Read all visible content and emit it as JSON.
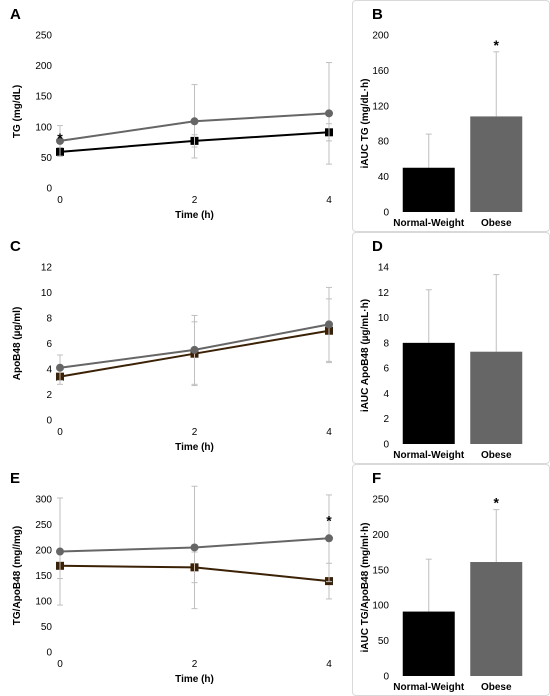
{
  "panels": {
    "A": {
      "letter": "A"
    },
    "B": {
      "letter": "B"
    },
    "C": {
      "letter": "C"
    },
    "D": {
      "letter": "D"
    },
    "E": {
      "letter": "E"
    },
    "F": {
      "letter": "F"
    }
  },
  "colors": {
    "normal_weight": "#000000",
    "obese": "#666666",
    "line_normal_C_E": "#3b2106",
    "error": "#bfbfbf"
  },
  "chart_data": [
    {
      "id": "A",
      "type": "line",
      "grid": false,
      "xlabel": "Time (h)",
      "ylabel": "TG (mg/dL)",
      "x": [
        0,
        2,
        4
      ],
      "ylim": [
        0,
        250
      ],
      "yticks": [
        0,
        50,
        100,
        150,
        200,
        250
      ],
      "series": [
        {
          "key": "normal",
          "values": [
            59,
            77,
            91
          ],
          "err": [
            7,
            10,
            14
          ],
          "marker": "square"
        },
        {
          "key": "obese",
          "values": [
            77,
            109,
            122
          ],
          "err": [
            25,
            60,
            83
          ],
          "marker": "circle"
        }
      ],
      "annotations": [
        {
          "text": "*",
          "x": 0,
          "y": 82
        }
      ]
    },
    {
      "id": "B",
      "type": "bar",
      "grid": false,
      "categories": [
        "Normal-Weight",
        "Obese"
      ],
      "ylabel": "iAUC TG (mg/dL·h)",
      "values": [
        50,
        108
      ],
      "err": [
        38,
        73
      ],
      "ylim": [
        0,
        200
      ],
      "yticks": [
        0,
        40,
        80,
        120,
        160,
        200
      ],
      "annotations": [
        {
          "text": "*",
          "category": "Obese"
        }
      ]
    },
    {
      "id": "C",
      "type": "line",
      "grid": false,
      "xlabel": "Time (h)",
      "ylabel": "ApoB48 (µg/ml)",
      "x": [
        0,
        2,
        4
      ],
      "ylim": [
        0,
        12
      ],
      "yticks": [
        0,
        2,
        4,
        6,
        8,
        10,
        12
      ],
      "series": [
        {
          "key": "normal",
          "values": [
            3.4,
            5.2,
            7.0
          ],
          "err": [
            0.6,
            2.5,
            2.5
          ],
          "marker": "square"
        },
        {
          "key": "obese",
          "values": [
            4.1,
            5.5,
            7.5
          ],
          "err": [
            1.0,
            2.7,
            2.9
          ],
          "marker": "circle"
        }
      ]
    },
    {
      "id": "D",
      "type": "bar",
      "grid": false,
      "categories": [
        "Normal-Weight",
        "Obese"
      ],
      "ylabel": "iAUC ApoB48 (µg/mL·h)",
      "values": [
        8.0,
        7.3
      ],
      "err": [
        4.2,
        6.1
      ],
      "ylim": [
        0,
        14
      ],
      "yticks": [
        0,
        2,
        4,
        6,
        8,
        10,
        12,
        14
      ]
    },
    {
      "id": "E",
      "type": "line",
      "grid": false,
      "xlabel": "Time (h)",
      "ylabel": "TG/ApoB48 (mg//mg)",
      "x": [
        0,
        2,
        4
      ],
      "ylim": [
        0,
        300
      ],
      "yticks": [
        0,
        50,
        100,
        150,
        200,
        250,
        300
      ],
      "series": [
        {
          "key": "normal",
          "values": [
            169,
            166,
            139
          ],
          "err": [
            25,
            30,
            35
          ],
          "marker": "square"
        },
        {
          "key": "obese",
          "values": [
            197,
            205,
            223
          ],
          "err": [
            105,
            120,
            85
          ],
          "marker": "circle"
        }
      ],
      "annotations": [
        {
          "text": "*",
          "x": 4,
          "y": 258
        }
      ]
    },
    {
      "id": "F",
      "type": "bar",
      "grid": false,
      "categories": [
        "Normal-Weight",
        "Obese"
      ],
      "ylabel": "iAUC TG/ApoB48 (mg/ml·h)",
      "values": [
        91,
        161
      ],
      "err": [
        74,
        74
      ],
      "ylim": [
        0,
        250
      ],
      "yticks": [
        0,
        50,
        100,
        150,
        200,
        250
      ],
      "annotations": [
        {
          "text": "*",
          "category": "Obese"
        }
      ]
    }
  ]
}
